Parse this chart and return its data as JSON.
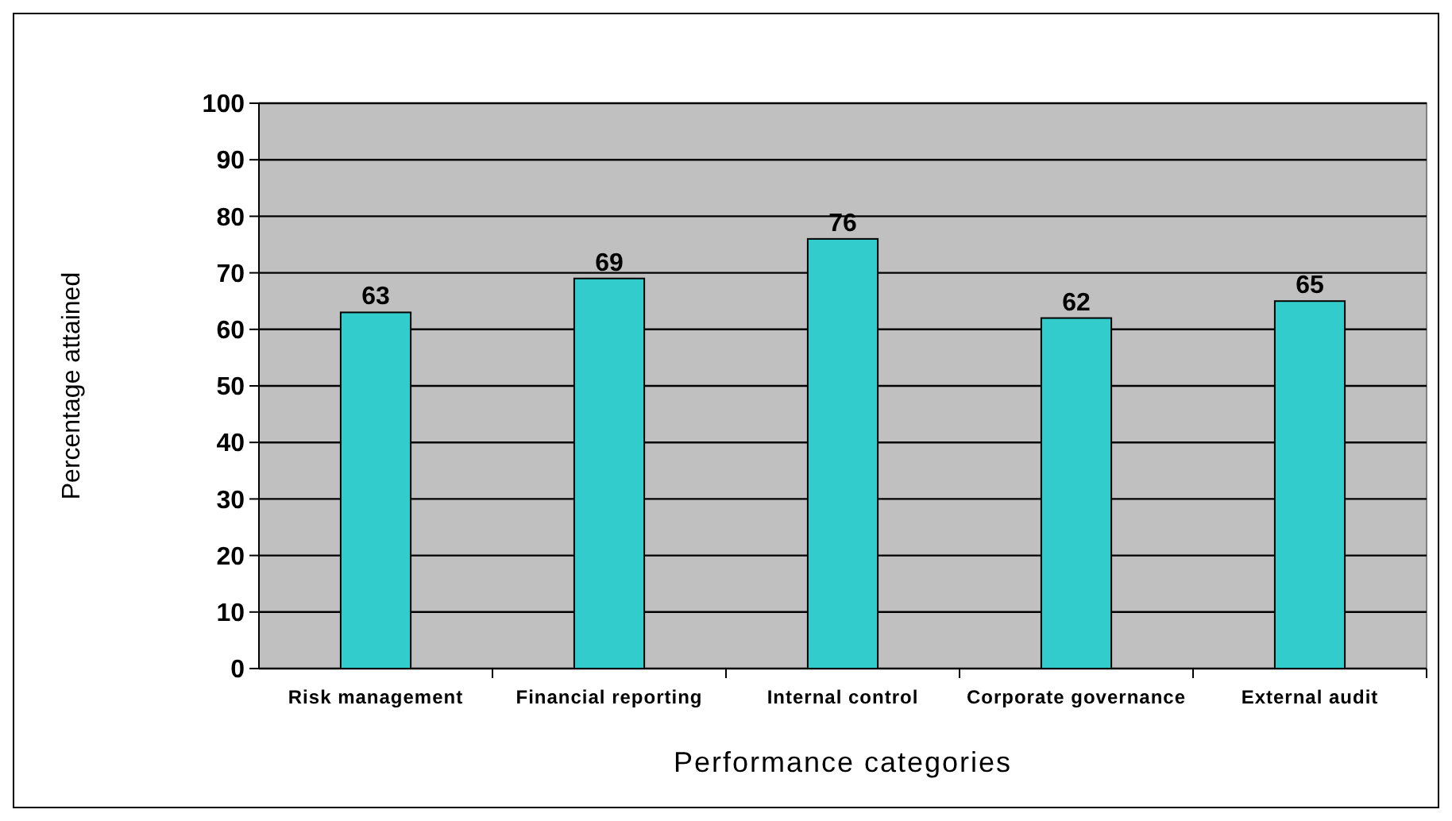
{
  "chart_data": {
    "type": "bar",
    "xlabel": "Performance categories",
    "ylabel": "Percentage attained",
    "categories": [
      "Risk management",
      "Financial reporting",
      "Internal control",
      "Corporate governance",
      "External audit"
    ],
    "values": [
      63,
      69,
      76,
      62,
      65
    ],
    "color": "#33cccc",
    "data_labels": true,
    "ylim": [
      0,
      100
    ],
    "yticks": [
      0,
      10,
      20,
      30,
      40,
      50,
      60,
      70,
      80,
      90,
      100
    ],
    "grid": "y"
  }
}
